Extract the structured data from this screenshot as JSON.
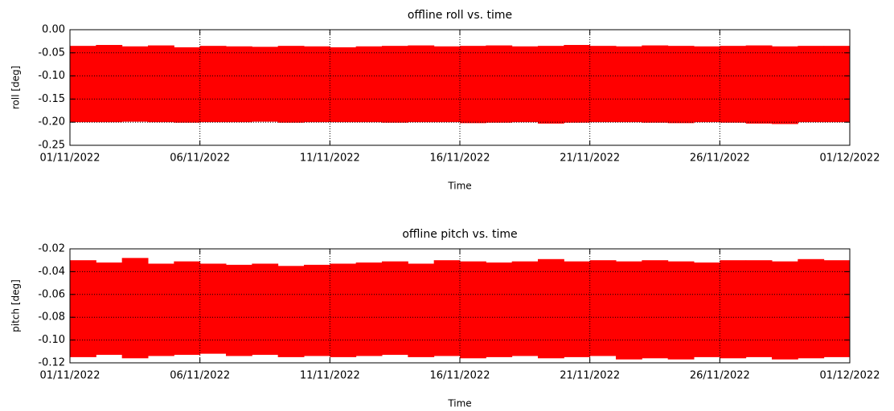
{
  "chart_data": [
    {
      "type": "range",
      "title": "offline roll vs. time",
      "xlabel": "Time",
      "ylabel": "roll [deg]",
      "color": "#ff0000",
      "grid": true,
      "x": [
        "2022-11-01",
        "2022-11-02",
        "2022-11-03",
        "2022-11-04",
        "2022-11-05",
        "2022-11-06",
        "2022-11-07",
        "2022-11-08",
        "2022-11-09",
        "2022-11-10",
        "2022-11-11",
        "2022-11-12",
        "2022-11-13",
        "2022-11-14",
        "2022-11-15",
        "2022-11-16",
        "2022-11-17",
        "2022-11-18",
        "2022-11-19",
        "2022-11-20",
        "2022-11-21",
        "2022-11-22",
        "2022-11-23",
        "2022-11-24",
        "2022-11-25",
        "2022-11-26",
        "2022-11-27",
        "2022-11-28",
        "2022-11-29",
        "2022-11-30"
      ],
      "high": [
        -0.035,
        -0.033,
        -0.036,
        -0.034,
        -0.038,
        -0.035,
        -0.036,
        -0.037,
        -0.035,
        -0.036,
        -0.038,
        -0.036,
        -0.035,
        -0.034,
        -0.036,
        -0.035,
        -0.034,
        -0.036,
        -0.035,
        -0.033,
        -0.035,
        -0.036,
        -0.034,
        -0.035,
        -0.036,
        -0.035,
        -0.034,
        -0.036,
        -0.035,
        -0.035
      ],
      "low": [
        -0.2,
        -0.2,
        -0.199,
        -0.2,
        -0.201,
        -0.2,
        -0.2,
        -0.199,
        -0.201,
        -0.2,
        -0.2,
        -0.2,
        -0.201,
        -0.2,
        -0.2,
        -0.202,
        -0.201,
        -0.2,
        -0.203,
        -0.201,
        -0.2,
        -0.2,
        -0.201,
        -0.202,
        -0.2,
        -0.201,
        -0.203,
        -0.204,
        -0.2,
        -0.2
      ],
      "xlim": [
        "2022-11-01",
        "2022-12-01"
      ],
      "xticks": [
        {
          "value": "2022-11-01",
          "label": "01/11/2022"
        },
        {
          "value": "2022-11-06",
          "label": "06/11/2022"
        },
        {
          "value": "2022-11-11",
          "label": "11/11/2022"
        },
        {
          "value": "2022-11-16",
          "label": "16/11/2022"
        },
        {
          "value": "2022-11-21",
          "label": "21/11/2022"
        },
        {
          "value": "2022-11-26",
          "label": "26/11/2022"
        },
        {
          "value": "2022-12-01",
          "label": "01/12/2022"
        }
      ],
      "ylim": [
        -0.25,
        0
      ],
      "yticks": [
        {
          "value": 0,
          "label": "0.00"
        },
        {
          "value": -0.05,
          "label": "-0.05"
        },
        {
          "value": -0.1,
          "label": "-0.10"
        },
        {
          "value": -0.15,
          "label": "-0.15"
        },
        {
          "value": -0.2,
          "label": "-0.20"
        },
        {
          "value": -0.25,
          "label": "-0.25"
        }
      ]
    },
    {
      "type": "range",
      "title": "offline pitch vs. time",
      "xlabel": "Time",
      "ylabel": "pitch [deg]",
      "color": "#ff0000",
      "grid": true,
      "x": [
        "2022-11-01",
        "2022-11-02",
        "2022-11-03",
        "2022-11-04",
        "2022-11-05",
        "2022-11-06",
        "2022-11-07",
        "2022-11-08",
        "2022-11-09",
        "2022-11-10",
        "2022-11-11",
        "2022-11-12",
        "2022-11-13",
        "2022-11-14",
        "2022-11-15",
        "2022-11-16",
        "2022-11-17",
        "2022-11-18",
        "2022-11-19",
        "2022-11-20",
        "2022-11-21",
        "2022-11-22",
        "2022-11-23",
        "2022-11-24",
        "2022-11-25",
        "2022-11-26",
        "2022-11-27",
        "2022-11-28",
        "2022-11-29",
        "2022-11-30"
      ],
      "high": [
        -0.03,
        -0.032,
        -0.028,
        -0.033,
        -0.031,
        -0.033,
        -0.034,
        -0.033,
        -0.035,
        -0.034,
        -0.033,
        -0.032,
        -0.031,
        -0.033,
        -0.03,
        -0.031,
        -0.032,
        -0.031,
        -0.029,
        -0.031,
        -0.03,
        -0.031,
        -0.03,
        -0.031,
        -0.032,
        -0.03,
        -0.03,
        -0.031,
        -0.029,
        -0.03
      ],
      "low": [
        -0.115,
        -0.113,
        -0.116,
        -0.114,
        -0.113,
        -0.112,
        -0.114,
        -0.113,
        -0.115,
        -0.114,
        -0.115,
        -0.114,
        -0.113,
        -0.115,
        -0.114,
        -0.116,
        -0.115,
        -0.114,
        -0.116,
        -0.115,
        -0.114,
        -0.117,
        -0.116,
        -0.117,
        -0.115,
        -0.116,
        -0.115,
        -0.117,
        -0.116,
        -0.115
      ],
      "xlim": [
        "2022-11-01",
        "2022-12-01"
      ],
      "xticks": [
        {
          "value": "2022-11-01",
          "label": "01/11/2022"
        },
        {
          "value": "2022-11-06",
          "label": "06/11/2022"
        },
        {
          "value": "2022-11-11",
          "label": "11/11/2022"
        },
        {
          "value": "2022-11-16",
          "label": "16/11/2022"
        },
        {
          "value": "2022-11-21",
          "label": "21/11/2022"
        },
        {
          "value": "2022-11-26",
          "label": "26/11/2022"
        },
        {
          "value": "2022-12-01",
          "label": "01/12/2022"
        }
      ],
      "ylim": [
        -0.12,
        -0.02
      ],
      "yticks": [
        {
          "value": -0.02,
          "label": "-0.02"
        },
        {
          "value": -0.04,
          "label": "-0.04"
        },
        {
          "value": -0.06,
          "label": "-0.06"
        },
        {
          "value": -0.08,
          "label": "-0.08"
        },
        {
          "value": -0.1,
          "label": "-0.10"
        },
        {
          "value": -0.12,
          "label": "-0.12"
        }
      ]
    }
  ]
}
